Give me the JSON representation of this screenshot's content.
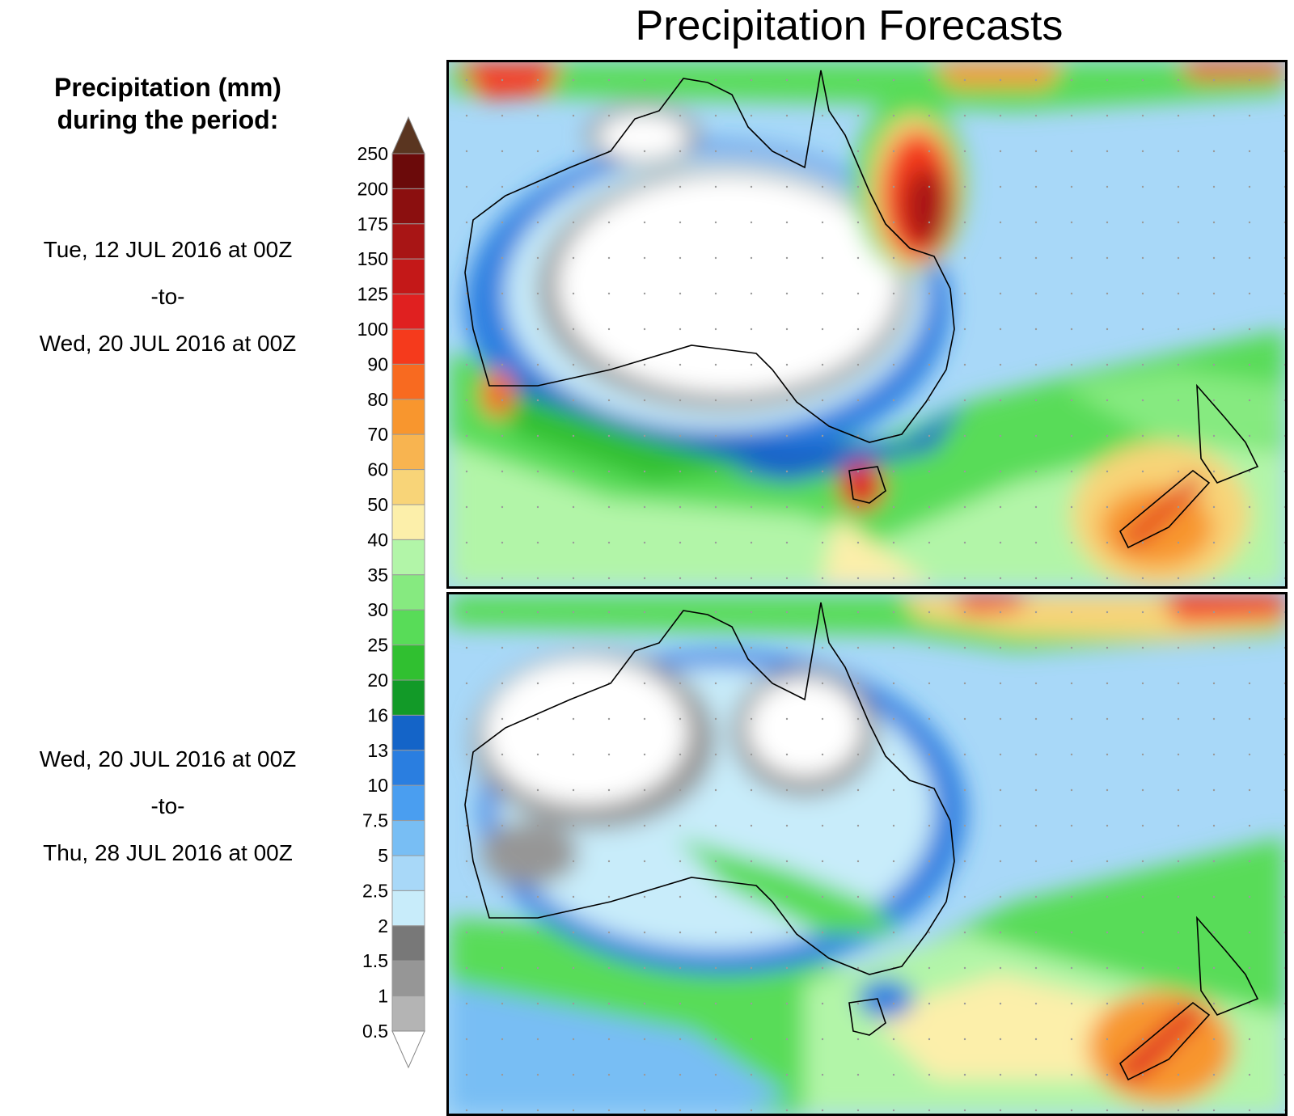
{
  "title": "Precipitation Forecasts",
  "legend": {
    "heading_line1": "Precipitation (mm)",
    "heading_line2": "during the period:",
    "levels": [
      "250",
      "200",
      "175",
      "150",
      "125",
      "100",
      "90",
      "80",
      "70",
      "60",
      "50",
      "40",
      "35",
      "30",
      "25",
      "20",
      "16",
      "13",
      "10",
      "7.5",
      "5",
      "2.5",
      "2",
      "1.5",
      "1",
      "0.5"
    ],
    "colors": [
      "#6b0a0a",
      "#8b0f0f",
      "#a81515",
      "#c41818",
      "#e02020",
      "#f53a1c",
      "#f86a20",
      "#f8962e",
      "#f8b450",
      "#f8d478",
      "#fcefaa",
      "#b2f5a8",
      "#86ea80",
      "#58dc58",
      "#30c030",
      "#129a28",
      "#1464c8",
      "#2a7ee0",
      "#4a9ef0",
      "#78bef4",
      "#a8d8f8",
      "#c8ecfa",
      "#787878",
      "#969696",
      "#b4b4b4",
      "#cccccc",
      "#ffffff"
    ],
    "over_color": "#5a3520",
    "under_color": "#ffffff"
  },
  "periods": [
    {
      "start": "Tue, 12 JUL 2016 at 00Z",
      "sep": "-to-",
      "end": "Wed, 20 JUL 2016 at 00Z"
    },
    {
      "start": "Wed, 20 JUL 2016 at 00Z",
      "sep": "-to-",
      "end": "Thu, 28 JUL 2016 at 00Z"
    }
  ]
}
